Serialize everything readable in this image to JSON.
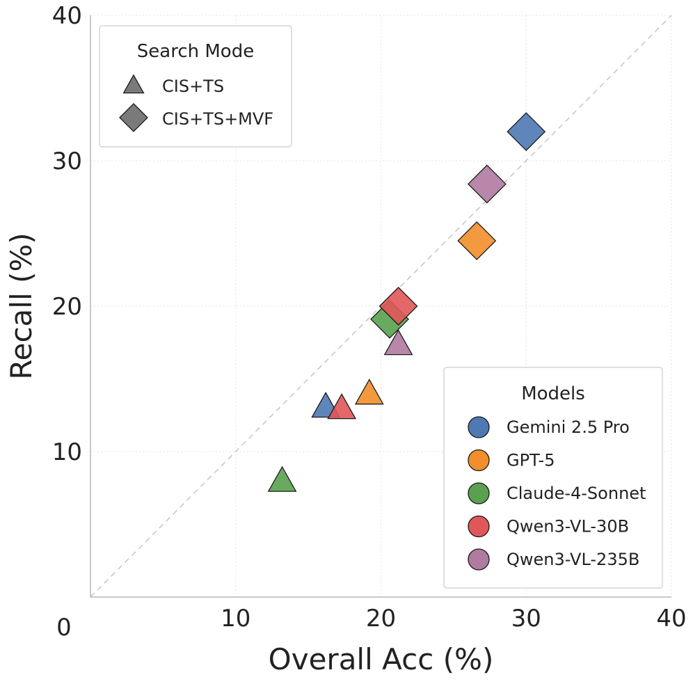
{
  "chart_data": {
    "type": "scatter",
    "xlabel": "Overall Acc (%)",
    "ylabel": "Recall (%)",
    "xlim": [
      0,
      40
    ],
    "ylim": [
      0,
      40
    ],
    "xticks": [
      0,
      10,
      20,
      30,
      40
    ],
    "yticks": [
      10,
      20,
      30,
      40
    ],
    "grid": true,
    "reference_line": "y = x (dashed)",
    "models": [
      {
        "name": "Gemini 2.5 Pro",
        "color": "#4e79b3"
      },
      {
        "name": "GPT-5",
        "color": "#f28e2b"
      },
      {
        "name": "Claude-4-Sonnet",
        "color": "#59a14f"
      },
      {
        "name": "Qwen3-VL-30B",
        "color": "#e15759"
      },
      {
        "name": "Qwen3-VL-235B",
        "color": "#b07aa1"
      }
    ],
    "search_modes": [
      {
        "name": "CIS+TS",
        "marker": "triangle"
      },
      {
        "name": "CIS+TS+MVF",
        "marker": "diamond"
      }
    ],
    "series": [
      {
        "model": "Claude-4-Sonnet",
        "mode": "CIS+TS",
        "x": 13.2,
        "y": 7.9
      },
      {
        "model": "Gemini 2.5 Pro",
        "mode": "CIS+TS",
        "x": 16.2,
        "y": 13.0
      },
      {
        "model": "Qwen3-VL-30B",
        "mode": "CIS+TS",
        "x": 17.3,
        "y": 12.9
      },
      {
        "model": "GPT-5",
        "mode": "CIS+TS",
        "x": 19.2,
        "y": 13.9
      },
      {
        "model": "Qwen3-VL-235B",
        "mode": "CIS+TS",
        "x": 21.2,
        "y": 17.3
      },
      {
        "model": "Claude-4-Sonnet",
        "mode": "CIS+TS+MVF",
        "x": 20.6,
        "y": 19.1
      },
      {
        "model": "Qwen3-VL-30B",
        "mode": "CIS+TS+MVF",
        "x": 21.2,
        "y": 20.0
      },
      {
        "model": "GPT-5",
        "mode": "CIS+TS+MVF",
        "x": 26.6,
        "y": 24.5
      },
      {
        "model": "Qwen3-VL-235B",
        "mode": "CIS+TS+MVF",
        "x": 27.3,
        "y": 28.4
      },
      {
        "model": "Gemini 2.5 Pro",
        "mode": "CIS+TS+MVF",
        "x": 30.0,
        "y": 32.0
      }
    ],
    "legends": {
      "mode_title": "Search Mode",
      "model_title": "Models",
      "mode_placement": "top-left",
      "model_placement": "bottom-right"
    }
  }
}
